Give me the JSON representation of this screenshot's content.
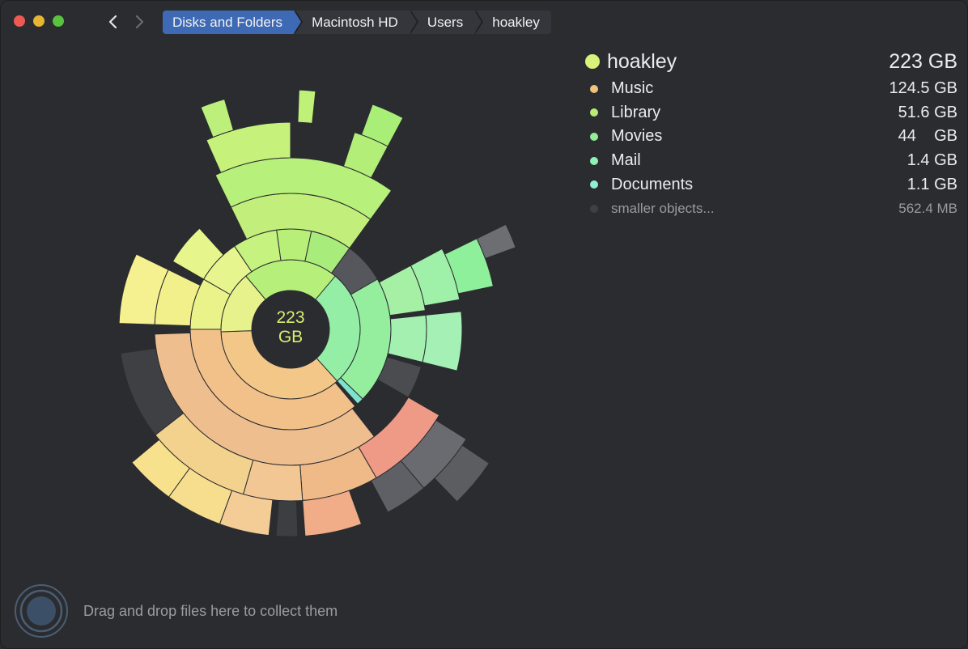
{
  "breadcrumb": [
    {
      "label": "Disks and Folders"
    },
    {
      "label": "Macintosh HD"
    },
    {
      "label": "Users"
    },
    {
      "label": "hoakley"
    }
  ],
  "center": {
    "line1": "223",
    "line2": "GB"
  },
  "legend": {
    "title": {
      "name": "hoakley",
      "size": "223 GB",
      "color": "#d8f27a"
    },
    "items": [
      {
        "name": "Music",
        "size": "124.5 GB",
        "color": "#f0c27c"
      },
      {
        "name": "Library",
        "size": "51.6 GB",
        "color": "#b9ec75"
      },
      {
        "name": "Movies",
        "size": "44    GB",
        "color": "#96ec95"
      },
      {
        "name": "Mail",
        "size": "1.4 GB",
        "color": "#8ef2b8"
      },
      {
        "name": "Documents",
        "size": "1.1 GB",
        "color": "#8ff0cf"
      },
      {
        "name": "smaller objects...",
        "size": "562.4 MB",
        "color": "#3f4045"
      }
    ]
  },
  "drop": {
    "text": "Drag and drop files here to collect them"
  },
  "colors": {
    "background": "#2b2c30",
    "accent": "#3e69b4"
  }
}
